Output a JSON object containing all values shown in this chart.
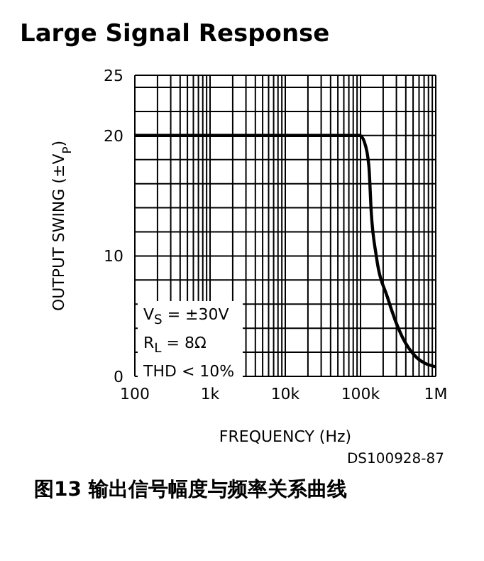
{
  "chart_data": {
    "type": "line",
    "title": "Large Signal Response",
    "xlabel": "FREQUENCY (Hz)",
    "ylabel": "OUTPUT SWING (±V$_{P}$)",
    "annotations": [
      "V$_{S}$ = ±30V",
      "R$_{L}$ = 8Ω",
      "THD < 10%",
      "DS100928-87",
      "图13 输出信号幅度与频率关系曲线"
    ],
    "log": "x",
    "grid": true,
    "marker": "none",
    "line_style": "solid",
    "xlim": [
      100,
      1000000
    ],
    "ylim": [
      0,
      25
    ],
    "xticks": [
      {
        "value": 100,
        "label": "100"
      },
      {
        "value": 200,
        "label": null
      },
      {
        "value": 300,
        "label": null
      },
      {
        "value": 400,
        "label": null
      },
      {
        "value": 500,
        "label": null
      },
      {
        "value": 600,
        "label": null
      },
      {
        "value": 700,
        "label": null
      },
      {
        "value": 800,
        "label": null
      },
      {
        "value": 900,
        "label": null
      },
      {
        "value": 1000,
        "label": "1k"
      },
      {
        "value": 2000,
        "label": null
      },
      {
        "value": 3000,
        "label": null
      },
      {
        "value": 4000,
        "label": null
      },
      {
        "value": 5000,
        "label": null
      },
      {
        "value": 6000,
        "label": null
      },
      {
        "value": 7000,
        "label": null
      },
      {
        "value": 8000,
        "label": null
      },
      {
        "value": 9000,
        "label": null
      },
      {
        "value": 10000,
        "label": "10k"
      },
      {
        "value": 20000,
        "label": null
      },
      {
        "value": 30000,
        "label": null
      },
      {
        "value": 40000,
        "label": null
      },
      {
        "value": 50000,
        "label": null
      },
      {
        "value": 60000,
        "label": null
      },
      {
        "value": 70000,
        "label": null
      },
      {
        "value": 80000,
        "label": null
      },
      {
        "value": 90000,
        "label": null
      },
      {
        "value": 100000,
        "label": "100k"
      },
      {
        "value": 200000,
        "label": null
      },
      {
        "value": 300000,
        "label": null
      },
      {
        "value": 400000,
        "label": null
      },
      {
        "value": 500000,
        "label": null
      },
      {
        "value": 600000,
        "label": null
      },
      {
        "value": 700000,
        "label": null
      },
      {
        "value": 800000,
        "label": null
      },
      {
        "value": 900000,
        "label": null
      },
      {
        "value": 1000000,
        "label": "1M"
      }
    ],
    "yticks": [
      0,
      {
        "value": 2,
        "label": null
      },
      {
        "value": 4,
        "label": null
      },
      {
        "value": 6,
        "label": null
      },
      {
        "value": 8,
        "label": null
      },
      10,
      {
        "value": 12,
        "label": null
      },
      {
        "value": 14,
        "label": null
      },
      {
        "value": 16,
        "label": null
      },
      {
        "value": 18,
        "label": null
      },
      20,
      {
        "value": 22,
        "label": null
      },
      {
        "value": 24,
        "label": null
      },
      25
    ],
    "x": [
      100,
      1000,
      10000,
      98000,
      112000,
      129000,
      139000,
      162000,
      230000,
      357000,
      550000,
      1000000
    ],
    "series": [
      {
        "color": "#000000",
        "values": [
          20,
          20,
          20,
          20,
          19.5,
          17.5,
          13.6,
          10,
          6.5,
          3.3,
          1.6,
          0.8
        ]
      }
    ]
  }
}
